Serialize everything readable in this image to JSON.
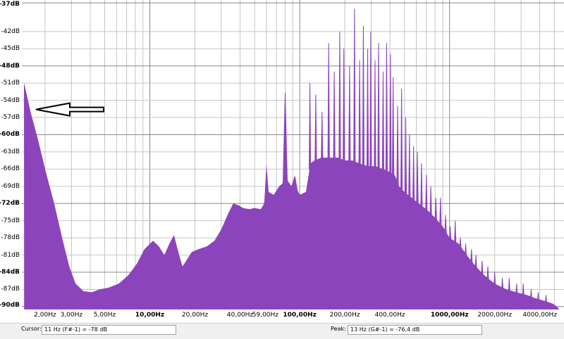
{
  "chart_data": {
    "type": "area",
    "title": "",
    "xlabel": "",
    "ylabel": "",
    "x_scale": "log",
    "xlim": [
      1.4,
      5800
    ],
    "ylim": [
      -90.5,
      -36.5
    ],
    "y_ticks": [
      {
        "value": -37,
        "label": "-37dB",
        "bold": true
      },
      {
        "value": -42,
        "label": "-42dB",
        "bold": false
      },
      {
        "value": -45,
        "label": "-45dB",
        "bold": false
      },
      {
        "value": -48,
        "label": "-48dB",
        "bold": true
      },
      {
        "value": -51,
        "label": "-51dB",
        "bold": false
      },
      {
        "value": -54,
        "label": "-54dB",
        "bold": false
      },
      {
        "value": -57,
        "label": "-57dB",
        "bold": false
      },
      {
        "value": -60,
        "label": "-60dB",
        "bold": true
      },
      {
        "value": -63,
        "label": "-63dB",
        "bold": false
      },
      {
        "value": -66,
        "label": "-66dB",
        "bold": false
      },
      {
        "value": -69,
        "label": "-69dB",
        "bold": false
      },
      {
        "value": -72,
        "label": "-72dB",
        "bold": true
      },
      {
        "value": -75,
        "label": "-75dB",
        "bold": false
      },
      {
        "value": -78,
        "label": "-78dB",
        "bold": false
      },
      {
        "value": -81,
        "label": "-81dB",
        "bold": false
      },
      {
        "value": -84,
        "label": "-84dB",
        "bold": true
      },
      {
        "value": -87,
        "label": "-87dB",
        "bold": false
      },
      {
        "value": -90,
        "label": "-90dB",
        "bold": true
      }
    ],
    "x_ticks": [
      {
        "value": 2,
        "label": "2,00Hz",
        "bold": false
      },
      {
        "value": 3,
        "label": "3,00Hz",
        "bold": false
      },
      {
        "value": 5,
        "label": "5,00Hz",
        "bold": false
      },
      {
        "value": 10,
        "label": "10,00Hz",
        "bold": true
      },
      {
        "value": 20,
        "label": "20,00Hz",
        "bold": false
      },
      {
        "value": 40,
        "label": "40,00Hz",
        "bold": false
      },
      {
        "value": 59,
        "label": "59,00Hz",
        "bold": false
      },
      {
        "value": 100,
        "label": "100,00Hz",
        "bold": true
      },
      {
        "value": 200,
        "label": "200,00Hz",
        "bold": false
      },
      {
        "value": 400,
        "label": "400,00Hz",
        "bold": false
      },
      {
        "value": 1000,
        "label": "1000,00Hz",
        "bold": true
      },
      {
        "value": 2000,
        "label": "2000,00Hz",
        "bold": false
      },
      {
        "value": 4000,
        "label": "4000,00Hz",
        "bold": false
      }
    ],
    "grid": true,
    "series": [
      {
        "color": "#8c44bc",
        "points": [
          [
            1.45,
            -51
          ],
          [
            1.6,
            -56
          ],
          [
            1.8,
            -61
          ],
          [
            2.0,
            -66
          ],
          [
            2.3,
            -72
          ],
          [
            2.6,
            -78
          ],
          [
            2.9,
            -83
          ],
          [
            3.2,
            -86
          ],
          [
            3.6,
            -87.3
          ],
          [
            4.1,
            -87.5
          ],
          [
            4.6,
            -87
          ],
          [
            5.3,
            -86.7
          ],
          [
            6.2,
            -86
          ],
          [
            7.2,
            -84.5
          ],
          [
            8.2,
            -82.5
          ],
          [
            9.2,
            -80
          ],
          [
            10.5,
            -78.5
          ],
          [
            11.5,
            -79.5
          ],
          [
            12.5,
            -81
          ],
          [
            13.5,
            -79
          ],
          [
            14.5,
            -77.5
          ],
          [
            15.5,
            -80.5
          ],
          [
            16.5,
            -83
          ],
          [
            17.5,
            -82
          ],
          [
            19,
            -80.5
          ],
          [
            21,
            -80
          ],
          [
            24,
            -79.5
          ],
          [
            27,
            -78.5
          ],
          [
            30,
            -76.5
          ],
          [
            33,
            -74
          ],
          [
            36,
            -72
          ],
          [
            39,
            -72.3
          ],
          [
            42,
            -72.8
          ],
          [
            46,
            -73
          ],
          [
            50,
            -72.8
          ],
          [
            55,
            -73
          ],
          [
            58,
            -72
          ],
          [
            60,
            -65
          ],
          [
            62,
            -70
          ],
          [
            67,
            -70.5
          ],
          [
            73,
            -69
          ],
          [
            77,
            -68.5
          ],
          [
            80,
            -50
          ],
          [
            83,
            -68
          ],
          [
            88,
            -69
          ],
          [
            93,
            -67
          ],
          [
            97,
            -69.8
          ],
          [
            100,
            -70.5
          ],
          [
            110,
            -70
          ],
          [
            118,
            -65
          ],
          [
            125,
            -64.5
          ],
          [
            140,
            -64
          ],
          [
            160,
            -64
          ],
          [
            180,
            -64
          ],
          [
            200,
            -64.5
          ],
          [
            225,
            -64.5
          ],
          [
            250,
            -65
          ],
          [
            285,
            -65.5
          ],
          [
            320,
            -65.5
          ],
          [
            360,
            -66
          ],
          [
            400,
            -66.5
          ],
          [
            430,
            -67
          ],
          [
            460,
            -69
          ],
          [
            500,
            -70
          ],
          [
            560,
            -71
          ],
          [
            620,
            -72
          ],
          [
            700,
            -73
          ],
          [
            800,
            -74.5
          ],
          [
            900,
            -76
          ],
          [
            1000,
            -78
          ],
          [
            1150,
            -79
          ],
          [
            1300,
            -81
          ],
          [
            1500,
            -83
          ],
          [
            1700,
            -84.5
          ],
          [
            2000,
            -86
          ],
          [
            2400,
            -87
          ],
          [
            2800,
            -87.5
          ],
          [
            3300,
            -88
          ],
          [
            3700,
            -88.5
          ],
          [
            4300,
            -89
          ],
          [
            4900,
            -89.5
          ],
          [
            5200,
            -90
          ],
          [
            5600,
            -91
          ]
        ],
        "peaks": [
          [
            117,
            -51
          ],
          [
            128,
            -53
          ],
          [
            141,
            -56
          ],
          [
            156,
            -44
          ],
          [
            170,
            -49
          ],
          [
            185,
            -42
          ],
          [
            197,
            -45
          ],
          [
            215,
            -48
          ],
          [
            232,
            -38
          ],
          [
            251,
            -47
          ],
          [
            266,
            -41
          ],
          [
            284,
            -45
          ],
          [
            298,
            -42
          ],
          [
            318,
            -47
          ],
          [
            336,
            -44
          ],
          [
            360,
            -49
          ],
          [
            380,
            -44
          ],
          [
            403,
            -46
          ],
          [
            420,
            -50
          ],
          [
            450,
            -55
          ],
          [
            478,
            -52
          ],
          [
            510,
            -57
          ],
          [
            540,
            -60
          ],
          [
            575,
            -62
          ],
          [
            610,
            -63
          ],
          [
            650,
            -65
          ],
          [
            700,
            -67
          ],
          [
            750,
            -69
          ],
          [
            810,
            -71
          ],
          [
            870,
            -71
          ],
          [
            940,
            -74
          ],
          [
            1010,
            -76
          ],
          [
            1090,
            -75
          ],
          [
            1180,
            -78
          ],
          [
            1280,
            -79
          ],
          [
            1400,
            -80
          ],
          [
            1500,
            -81
          ],
          [
            1650,
            -82
          ],
          [
            1800,
            -83
          ],
          [
            2000,
            -84
          ],
          [
            2250,
            -85
          ],
          [
            2500,
            -85
          ],
          [
            2800,
            -86
          ],
          [
            3100,
            -86
          ],
          [
            3500,
            -87
          ],
          [
            3900,
            -87.5
          ],
          [
            4400,
            -88
          ]
        ]
      }
    ]
  },
  "status": {
    "cursor_label": "Cursor:",
    "cursor_value": "11 Hz (F#-1) = -78 dB",
    "peak_label": "Peak:",
    "peak_value": "13 Hz (G#-1) = -76,4 dB"
  }
}
